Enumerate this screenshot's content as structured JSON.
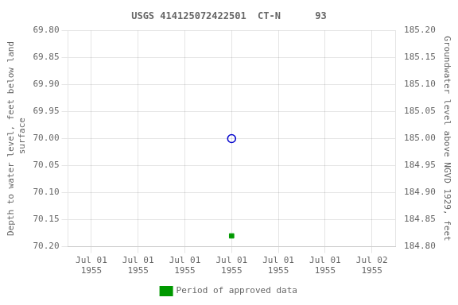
{
  "chart_data": {
    "type": "scatter",
    "title": "USGS 414125072422501  CT-N      93",
    "ylabel": "Depth to water level, feet below land\n surface",
    "y2label": "Groundwater level above NGVD 1929, feet",
    "categories": [
      "Jul 01\n1955",
      "Jul 01\n1955",
      "Jul 01\n1955",
      "Jul 01\n1955",
      "Jul 01\n1955",
      "Jul 01\n1955",
      "Jul 02\n1955"
    ],
    "series": [
      {
        "color": "#0000cc",
        "marker": "circle",
        "values": [
          null,
          null,
          null,
          70.0,
          null,
          null,
          null
        ]
      },
      {
        "name": "Period of approved data",
        "color": "#009900",
        "marker": "square",
        "values": [
          null,
          null,
          null,
          70.18,
          null,
          null,
          null
        ]
      }
    ],
    "ylim": [
      70.2,
      69.8
    ],
    "yticks": [
      {
        "value": 69.8,
        "label": "69.80"
      },
      {
        "value": 69.85,
        "label": "69.85"
      },
      {
        "value": 69.9,
        "label": "69.90"
      },
      {
        "value": 69.95,
        "label": "69.95"
      },
      {
        "value": 70.0,
        "label": "70.00"
      },
      {
        "value": 70.05,
        "label": "70.05"
      },
      {
        "value": 70.1,
        "label": "70.10"
      },
      {
        "value": 70.15,
        "label": "70.15"
      },
      {
        "value": 70.2,
        "label": "70.20"
      }
    ],
    "y2lim": [
      184.8,
      185.2
    ],
    "y2ticks": [
      {
        "value": 185.2,
        "label": "185.20"
      },
      {
        "value": 185.15,
        "label": "185.15"
      },
      {
        "value": 185.1,
        "label": "185.10"
      },
      {
        "value": 185.05,
        "label": "185.05"
      },
      {
        "value": 185.0,
        "label": "185.00"
      },
      {
        "value": 184.95,
        "label": "184.95"
      },
      {
        "value": 184.9,
        "label": "184.90"
      },
      {
        "value": 184.85,
        "label": "184.85"
      },
      {
        "value": 184.8,
        "label": "184.80"
      }
    ],
    "grid": true,
    "legend": "bottom"
  }
}
